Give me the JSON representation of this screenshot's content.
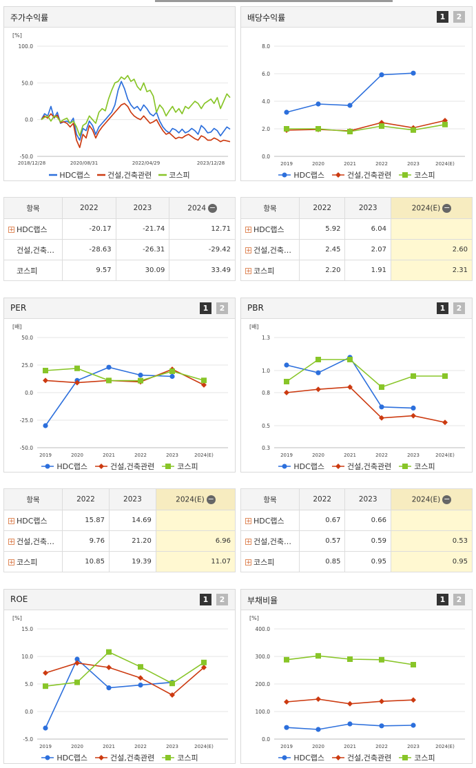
{
  "colors": {
    "hdc": "#2c6fdc",
    "con": "#cc3a10",
    "kospi": "#88c528"
  },
  "legend": {
    "hdc": "HDC랩스",
    "con": "건설,건축관련",
    "kospi": "코스피"
  },
  "buttons": {
    "one": "1",
    "two": "2"
  },
  "panels": [
    {
      "id": "stock",
      "title": "주가수익률",
      "unit": "[%]",
      "buttons": false
    },
    {
      "id": "div",
      "title": "배당수익률",
      "unit": "",
      "buttons": true
    },
    {
      "id": "per",
      "title": "PER",
      "unit": "[배]",
      "buttons": true
    },
    {
      "id": "pbr",
      "title": "PBR",
      "unit": "[배]",
      "buttons": true
    },
    {
      "id": "roe",
      "title": "ROE",
      "unit": "[%]",
      "buttons": true
    },
    {
      "id": "debt",
      "title": "부채비율",
      "unit": "[%]",
      "buttons": true
    }
  ],
  "tables": [
    {
      "id": "t_stock",
      "header": [
        "항목",
        "2022",
        "2023",
        "2024"
      ],
      "rows": [
        {
          "name": "HDC랩스",
          "plus": true,
          "vals": [
            "-20.17",
            "-21.74",
            "12.71"
          ],
          "hl": [
            false,
            false,
            false
          ]
        },
        {
          "name": "건설,건축…",
          "plus": false,
          "vals": [
            "-28.63",
            "-26.31",
            "-29.42"
          ],
          "hl": [
            false,
            false,
            false
          ]
        },
        {
          "name": "코스피",
          "plus": false,
          "vals": [
            "9.57",
            "30.09",
            "33.49"
          ],
          "hl": [
            false,
            false,
            false
          ]
        }
      ]
    },
    {
      "id": "t_div",
      "header": [
        "항목",
        "2022",
        "2023",
        "2024(E)"
      ],
      "rows": [
        {
          "name": "HDC랩스",
          "plus": true,
          "vals": [
            "5.92",
            "6.04",
            ""
          ],
          "hl": [
            false,
            false,
            true
          ]
        },
        {
          "name": "건설,건축…",
          "plus": true,
          "vals": [
            "2.45",
            "2.07",
            "2.60"
          ],
          "hl": [
            false,
            false,
            true
          ]
        },
        {
          "name": "코스피",
          "plus": true,
          "vals": [
            "2.20",
            "1.91",
            "2.31"
          ],
          "hl": [
            false,
            false,
            true
          ]
        }
      ]
    },
    {
      "id": "t_per",
      "header": [
        "항목",
        "2022",
        "2023",
        "2024(E)"
      ],
      "rows": [
        {
          "name": "HDC랩스",
          "plus": true,
          "vals": [
            "15.87",
            "14.69",
            ""
          ],
          "hl": [
            false,
            false,
            true
          ]
        },
        {
          "name": "건설,건축…",
          "plus": true,
          "vals": [
            "9.76",
            "21.20",
            "6.96"
          ],
          "hl": [
            false,
            false,
            true
          ]
        },
        {
          "name": "코스피",
          "plus": true,
          "vals": [
            "10.85",
            "19.39",
            "11.07"
          ],
          "hl": [
            false,
            false,
            true
          ]
        }
      ]
    },
    {
      "id": "t_pbr",
      "header": [
        "항목",
        "2022",
        "2023",
        "2024(E)"
      ],
      "rows": [
        {
          "name": "HDC랩스",
          "plus": true,
          "vals": [
            "0.67",
            "0.66",
            ""
          ],
          "hl": [
            false,
            false,
            true
          ]
        },
        {
          "name": "건설,건축…",
          "plus": true,
          "vals": [
            "0.57",
            "0.59",
            "0.53"
          ],
          "hl": [
            false,
            false,
            true
          ]
        },
        {
          "name": "코스피",
          "plus": true,
          "vals": [
            "0.85",
            "0.95",
            "0.95"
          ],
          "hl": [
            false,
            false,
            true
          ]
        }
      ]
    }
  ],
  "chart_data": [
    {
      "id": "stock",
      "type": "line",
      "title": "주가수익률",
      "ylabel": "[%]",
      "ylim": [
        -50,
        100
      ],
      "yticks": [
        "100.0",
        "50.0",
        "0.0",
        "-50.0"
      ],
      "xticklabels": [
        "2018/12/28",
        "2020/08/31",
        "2022/04/29",
        "2023/12/28"
      ],
      "series": [
        {
          "name": "HDC랩스",
          "values": [
            0,
            8,
            5,
            18,
            2,
            10,
            -5,
            -3,
            -2,
            -5,
            2,
            -20,
            -28,
            -12,
            -15,
            -2,
            -8,
            -20,
            -10,
            -5,
            0,
            5,
            10,
            20,
            40,
            52,
            42,
            28,
            20,
            15,
            18,
            12,
            20,
            15,
            8,
            5,
            10,
            -2,
            -10,
            -15,
            -18,
            -12,
            -14,
            -18,
            -13,
            -18,
            -16,
            -12,
            -15,
            -20,
            -8,
            -12,
            -18,
            -17,
            -12,
            -15,
            -22,
            -16,
            -10,
            -13
          ]
        },
        {
          "name": "건설,건축관련",
          "values": [
            0,
            5,
            2,
            8,
            3,
            6,
            -4,
            -3,
            -5,
            -10,
            -5,
            -28,
            -38,
            -20,
            -25,
            -8,
            -14,
            -25,
            -16,
            -10,
            -5,
            0,
            5,
            10,
            15,
            20,
            22,
            18,
            10,
            5,
            2,
            0,
            5,
            0,
            -5,
            -3,
            0,
            -8,
            -15,
            -20,
            -18,
            -22,
            -26,
            -24,
            -25,
            -22,
            -20,
            -23,
            -26,
            -28,
            -22,
            -24,
            -28,
            -28,
            -25,
            -27,
            -30,
            -28,
            -29,
            -30
          ]
        },
        {
          "name": "코스피",
          "values": [
            0,
            3,
            5,
            -2,
            5,
            3,
            -3,
            0,
            2,
            -5,
            -2,
            -10,
            -22,
            -8,
            -5,
            5,
            0,
            -5,
            10,
            15,
            12,
            28,
            40,
            50,
            52,
            58,
            55,
            60,
            52,
            55,
            45,
            40,
            50,
            38,
            40,
            32,
            10,
            20,
            15,
            5,
            12,
            18,
            10,
            15,
            8,
            18,
            15,
            20,
            25,
            22,
            15,
            22,
            25,
            28,
            22,
            30,
            15,
            25,
            35,
            30
          ]
        }
      ]
    },
    {
      "id": "div",
      "type": "line",
      "ylim": [
        0,
        8
      ],
      "yticks": [
        "8.0",
        "6.0",
        "4.0",
        "2.0",
        "0.0"
      ],
      "categories": [
        "2019",
        "2020",
        "2021",
        "2022",
        "2023",
        "2024(E)"
      ],
      "series": [
        {
          "name": "HDC랩스",
          "values": [
            3.2,
            3.8,
            3.7,
            5.92,
            6.04,
            null
          ]
        },
        {
          "name": "건설,건축관련",
          "values": [
            1.9,
            1.95,
            1.85,
            2.45,
            2.07,
            2.6
          ]
        },
        {
          "name": "코스피",
          "values": [
            2.0,
            2.0,
            1.8,
            2.2,
            1.91,
            2.31
          ]
        }
      ]
    },
    {
      "id": "per",
      "type": "line",
      "ylabel": "[배]",
      "ylim": [
        -50,
        50
      ],
      "yticks": [
        "50.0",
        "25.0",
        "0.0",
        "-25.0",
        "-50.0"
      ],
      "categories": [
        "2019",
        "2020",
        "2021",
        "2022",
        "2023",
        "2024(E)"
      ],
      "series": [
        {
          "name": "HDC랩스",
          "values": [
            -30,
            11,
            23,
            15.87,
            14.69,
            null
          ]
        },
        {
          "name": "건설,건축관련",
          "values": [
            11,
            9,
            11,
            9.76,
            21.2,
            6.96
          ]
        },
        {
          "name": "코스피",
          "values": [
            20,
            22,
            11,
            10.85,
            19.39,
            11.07
          ]
        }
      ]
    },
    {
      "id": "pbr",
      "type": "line",
      "ylabel": "[배]",
      "ylim": [
        0.3,
        1.3
      ],
      "yticks": [
        "1.3",
        "1.0",
        "0.8",
        "0.5",
        "0.3"
      ],
      "categories": [
        "2019",
        "2020",
        "2021",
        "2022",
        "2023",
        "2024(E)"
      ],
      "series": [
        {
          "name": "HDC랩스",
          "values": [
            1.05,
            0.98,
            1.12,
            0.67,
            0.66,
            null
          ]
        },
        {
          "name": "건설,건축관련",
          "values": [
            0.8,
            0.83,
            0.85,
            0.57,
            0.59,
            0.53
          ]
        },
        {
          "name": "코스피",
          "values": [
            0.9,
            1.1,
            1.1,
            0.85,
            0.95,
            0.95
          ]
        }
      ]
    },
    {
      "id": "roe",
      "type": "line",
      "ylabel": "[%]",
      "ylim": [
        -5,
        15
      ],
      "yticks": [
        "15.0",
        "10.0",
        "5.0",
        "0.0",
        "-5.0"
      ],
      "categories": [
        "2019",
        "2020",
        "2021",
        "2022",
        "2023",
        "2024(E)"
      ],
      "series": [
        {
          "name": "HDC랩스",
          "values": [
            -3,
            9.5,
            4.3,
            4.8,
            5.3,
            null
          ]
        },
        {
          "name": "건설,건축관련",
          "values": [
            7,
            8.8,
            8,
            6.1,
            3,
            8
          ]
        },
        {
          "name": "코스피",
          "values": [
            4.6,
            5.3,
            10.8,
            8.1,
            5.1,
            8.9
          ]
        }
      ]
    },
    {
      "id": "debt",
      "type": "line",
      "ylabel": "[%]",
      "ylim": [
        0,
        400
      ],
      "yticks": [
        "400.0",
        "300.0",
        "200.0",
        "100.0",
        "0.0"
      ],
      "categories": [
        "2019",
        "2020",
        "2021",
        "2022",
        "2023",
        "2024(E)"
      ],
      "series": [
        {
          "name": "HDC랩스",
          "values": [
            42,
            35,
            55,
            48,
            50,
            null
          ]
        },
        {
          "name": "건설,건축관련",
          "values": [
            135,
            145,
            128,
            137,
            142,
            null
          ]
        },
        {
          "name": "코스피",
          "values": [
            288,
            302,
            290,
            288,
            270,
            null
          ]
        }
      ]
    }
  ]
}
